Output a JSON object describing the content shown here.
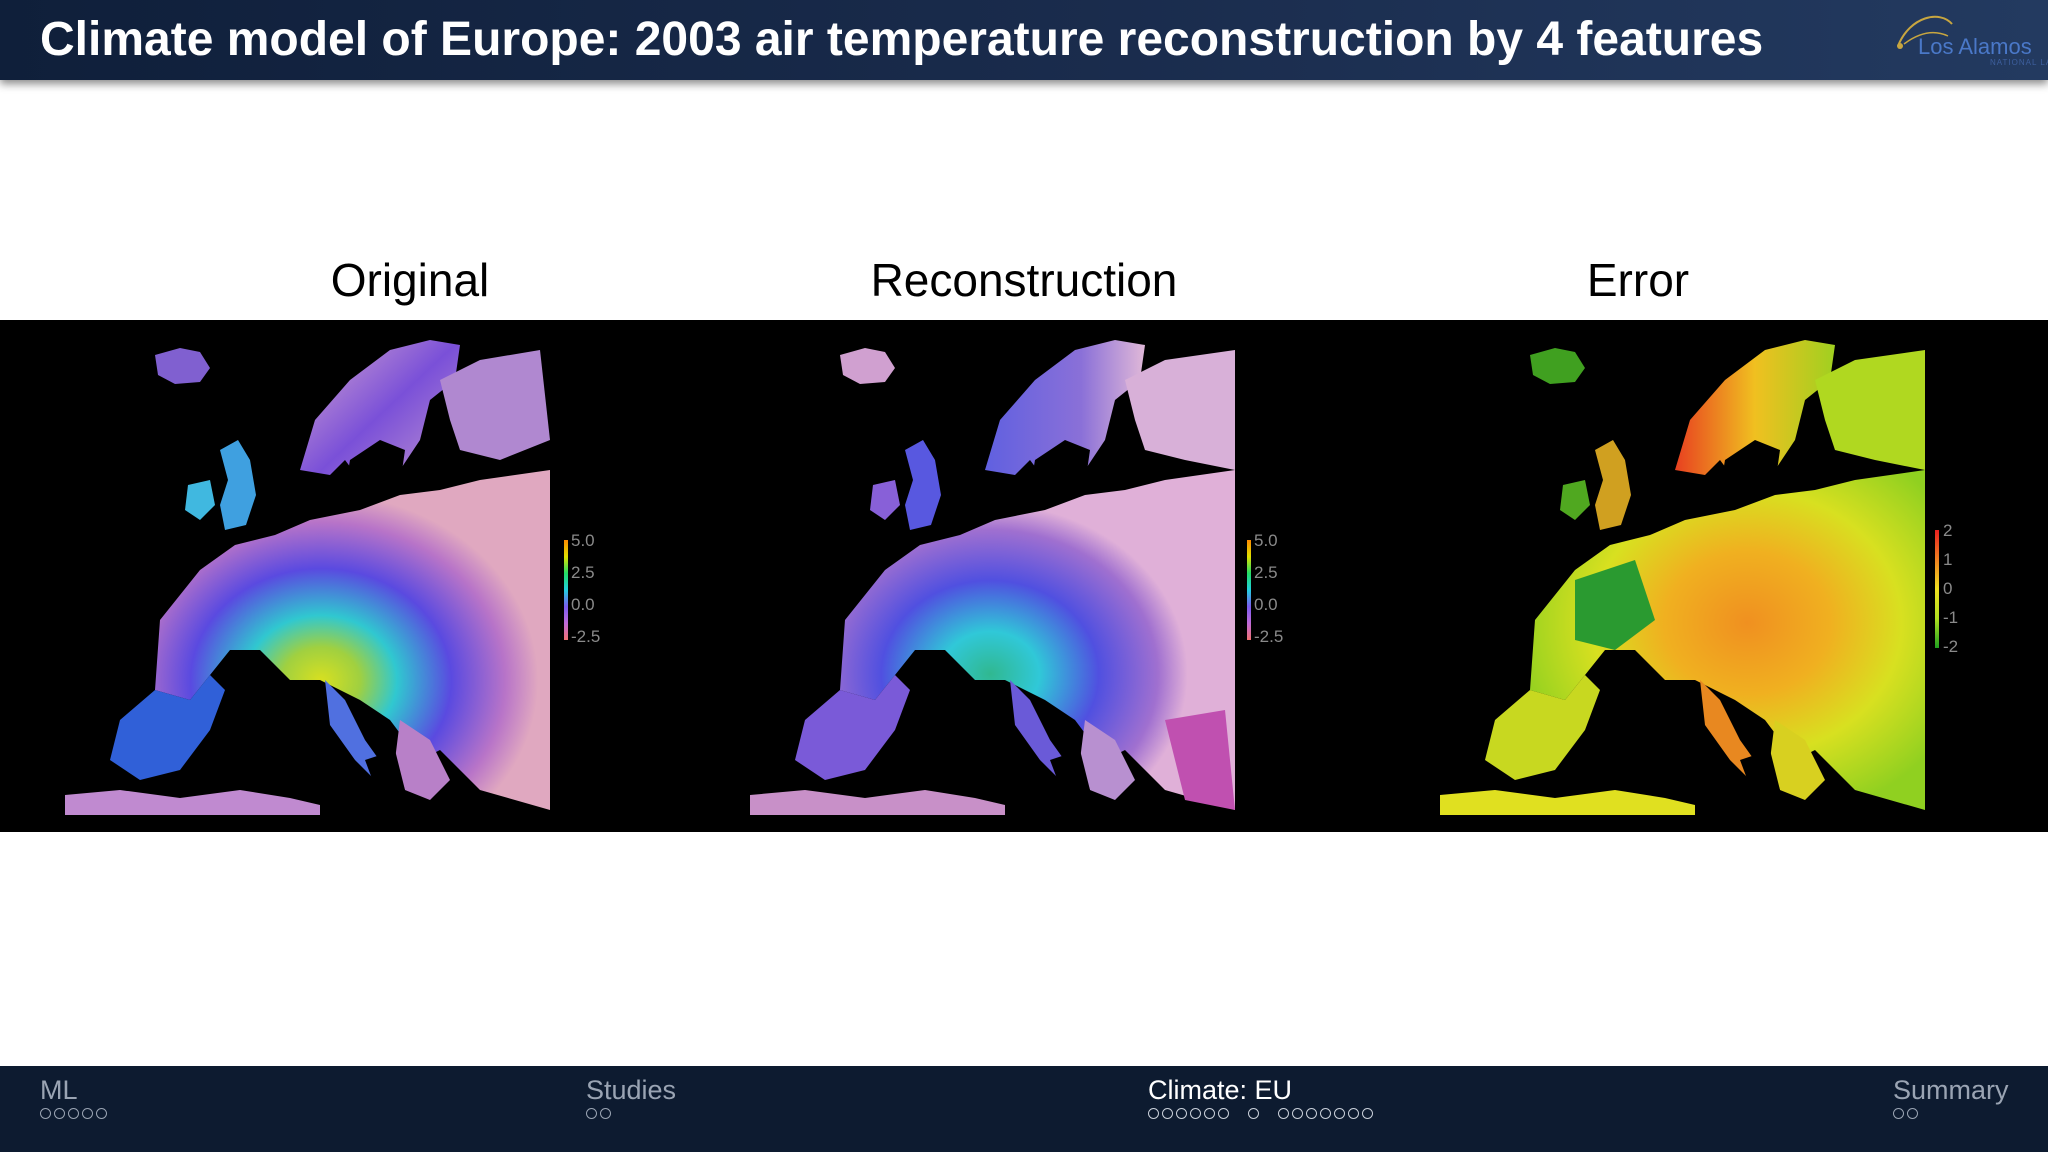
{
  "header": {
    "title": "Climate model of Europe: 2003 air temperature reconstruction by 4 features",
    "logo_text": "Los Alamos",
    "logo_subtext": "NATIONAL LAB"
  },
  "panels": [
    {
      "title": "Original",
      "colorbar": {
        "ticks": [
          "5.0",
          "2.5",
          "0.0",
          "-2.5"
        ],
        "colors": [
          "#ff8a00",
          "#e0e000",
          "#22dd66",
          "#22cfe0",
          "#7b5cf0",
          "#c06ad8",
          "#f07070"
        ]
      }
    },
    {
      "title": "Reconstruction",
      "colorbar": {
        "ticks": [
          "5.0",
          "2.5",
          "0.0",
          "-2.5"
        ],
        "colors": [
          "#ff8a00",
          "#e0e000",
          "#22dd66",
          "#22cfe0",
          "#7b5cf0",
          "#c06ad8",
          "#f07070"
        ]
      }
    },
    {
      "title": "Error",
      "colorbar": {
        "ticks": [
          "2",
          "1",
          "0",
          "-1",
          "-2"
        ],
        "colors": [
          "#e82020",
          "#f08020",
          "#f0e020",
          "#b0e020",
          "#20a020"
        ]
      }
    }
  ],
  "footer": {
    "sections": [
      {
        "label": "ML",
        "dot_groups": [
          5
        ],
        "active": false
      },
      {
        "label": "Studies",
        "dot_groups": [
          2
        ],
        "active": false
      },
      {
        "label": "Climate: EU",
        "dot_groups": [
          6,
          1,
          7
        ],
        "active": true
      },
      {
        "label": "Summary",
        "dot_groups": [
          2
        ],
        "active": false
      }
    ]
  },
  "colors": {
    "header_bg": "#1a2c4d",
    "footer_bg": "#0d1b30",
    "strip_bg": "#000000"
  }
}
